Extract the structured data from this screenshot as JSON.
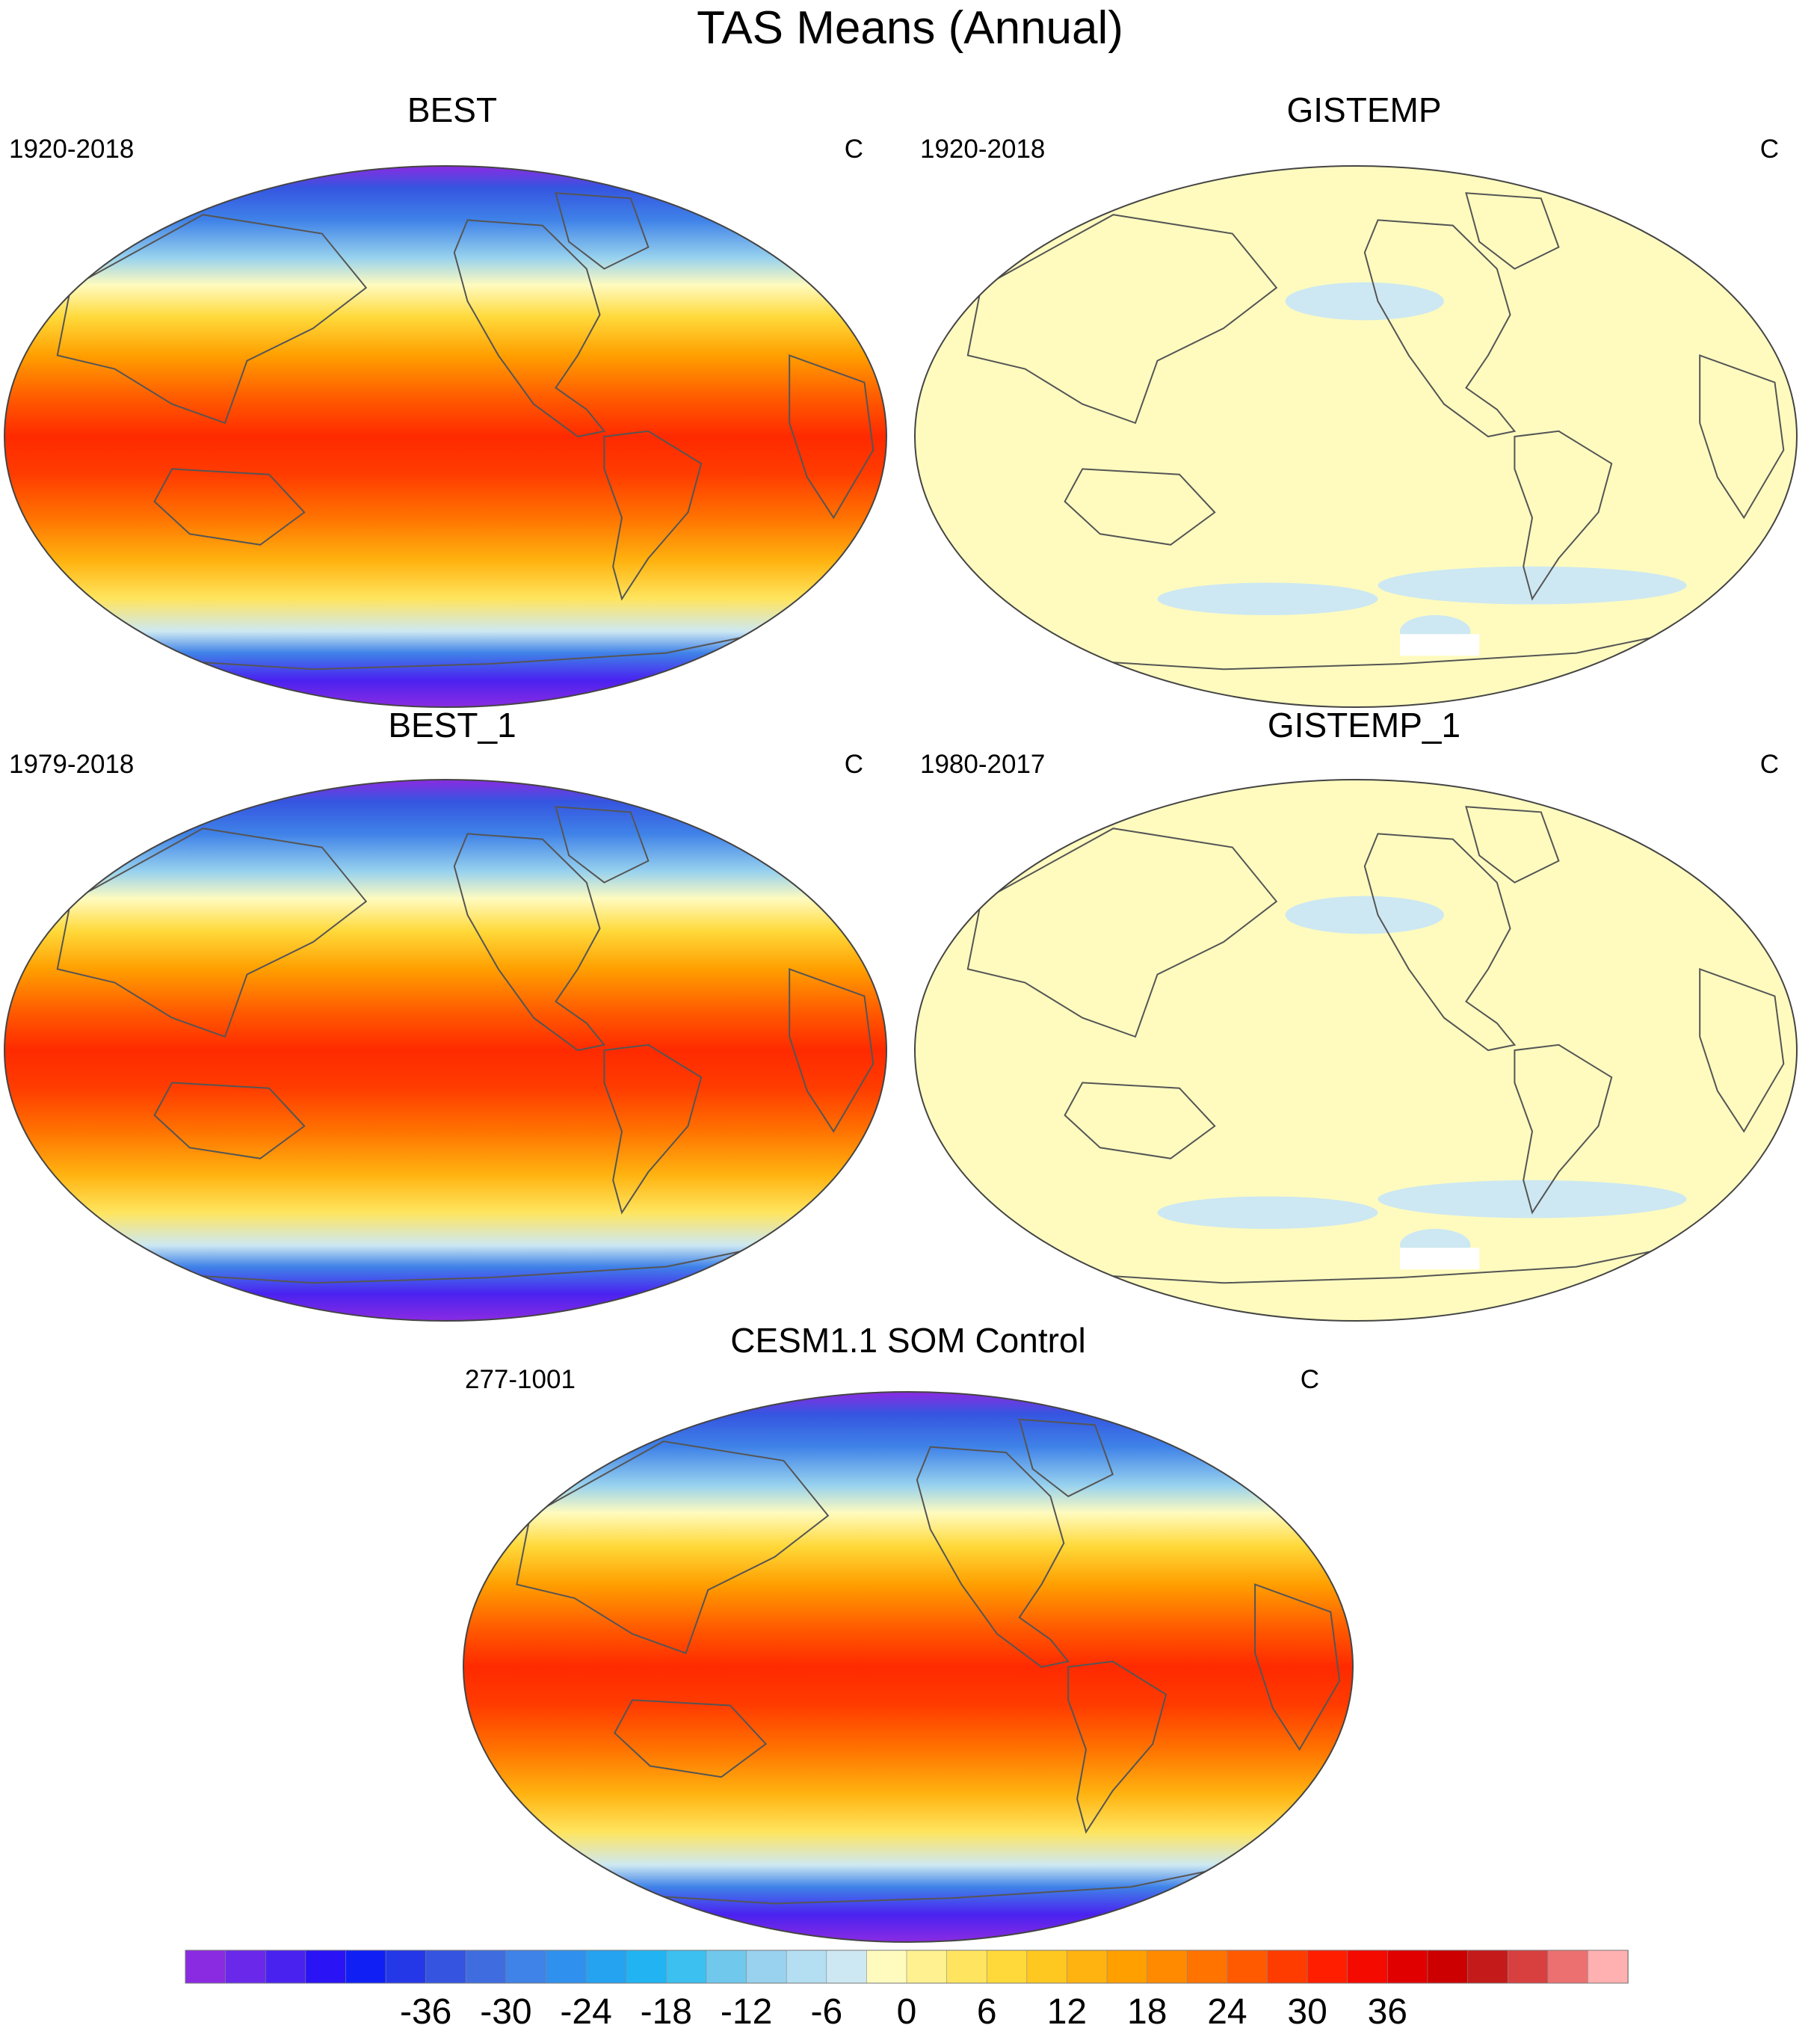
{
  "title": "TAS Means (Annual)",
  "panels": [
    {
      "id": "best",
      "title": "BEST",
      "left_label": "1920-2018",
      "right_label": "C",
      "field": "temperature"
    },
    {
      "id": "gistemp",
      "title": "GISTEMP",
      "left_label": "1920-2018",
      "right_label": "C",
      "field": "near-zero"
    },
    {
      "id": "best_1",
      "title": "BEST_1",
      "left_label": "1979-2018",
      "right_label": "C",
      "field": "temperature"
    },
    {
      "id": "gistemp_1",
      "title": "GISTEMP_1",
      "left_label": "1980-2017",
      "right_label": "C",
      "field": "near-zero"
    },
    {
      "id": "cesm",
      "title": "CESM1.1 SOM Control",
      "left_label": "277-1001",
      "right_label": "C",
      "field": "temperature"
    }
  ],
  "colorbar": {
    "labels": [
      "-36",
      "-30",
      "-24",
      "-18",
      "-12",
      "-6",
      "0",
      "6",
      "12",
      "18",
      "24",
      "30",
      "36"
    ],
    "colors": [
      "#8a2be2",
      "#6a28ea",
      "#4a22f0",
      "#2a14f5",
      "#1020f5",
      "#2538e8",
      "#3555e0",
      "#3f6de0",
      "#3f82e8",
      "#2f90ee",
      "#25a2f0",
      "#22b4f2",
      "#3cc0f0",
      "#70c8ec",
      "#98d2ee",
      "#b4def2",
      "#cde8f2",
      "#fffbbf",
      "#fff18f",
      "#ffe55f",
      "#ffd93a",
      "#ffc820",
      "#ffb310",
      "#ff9f00",
      "#ff8a00",
      "#ff7300",
      "#ff5a00",
      "#ff3c00",
      "#ff1e00",
      "#f50a00",
      "#e00000",
      "#cc0000",
      "#c41a1a",
      "#d84040",
      "#ec7070",
      "#ffb0b0"
    ]
  }
}
